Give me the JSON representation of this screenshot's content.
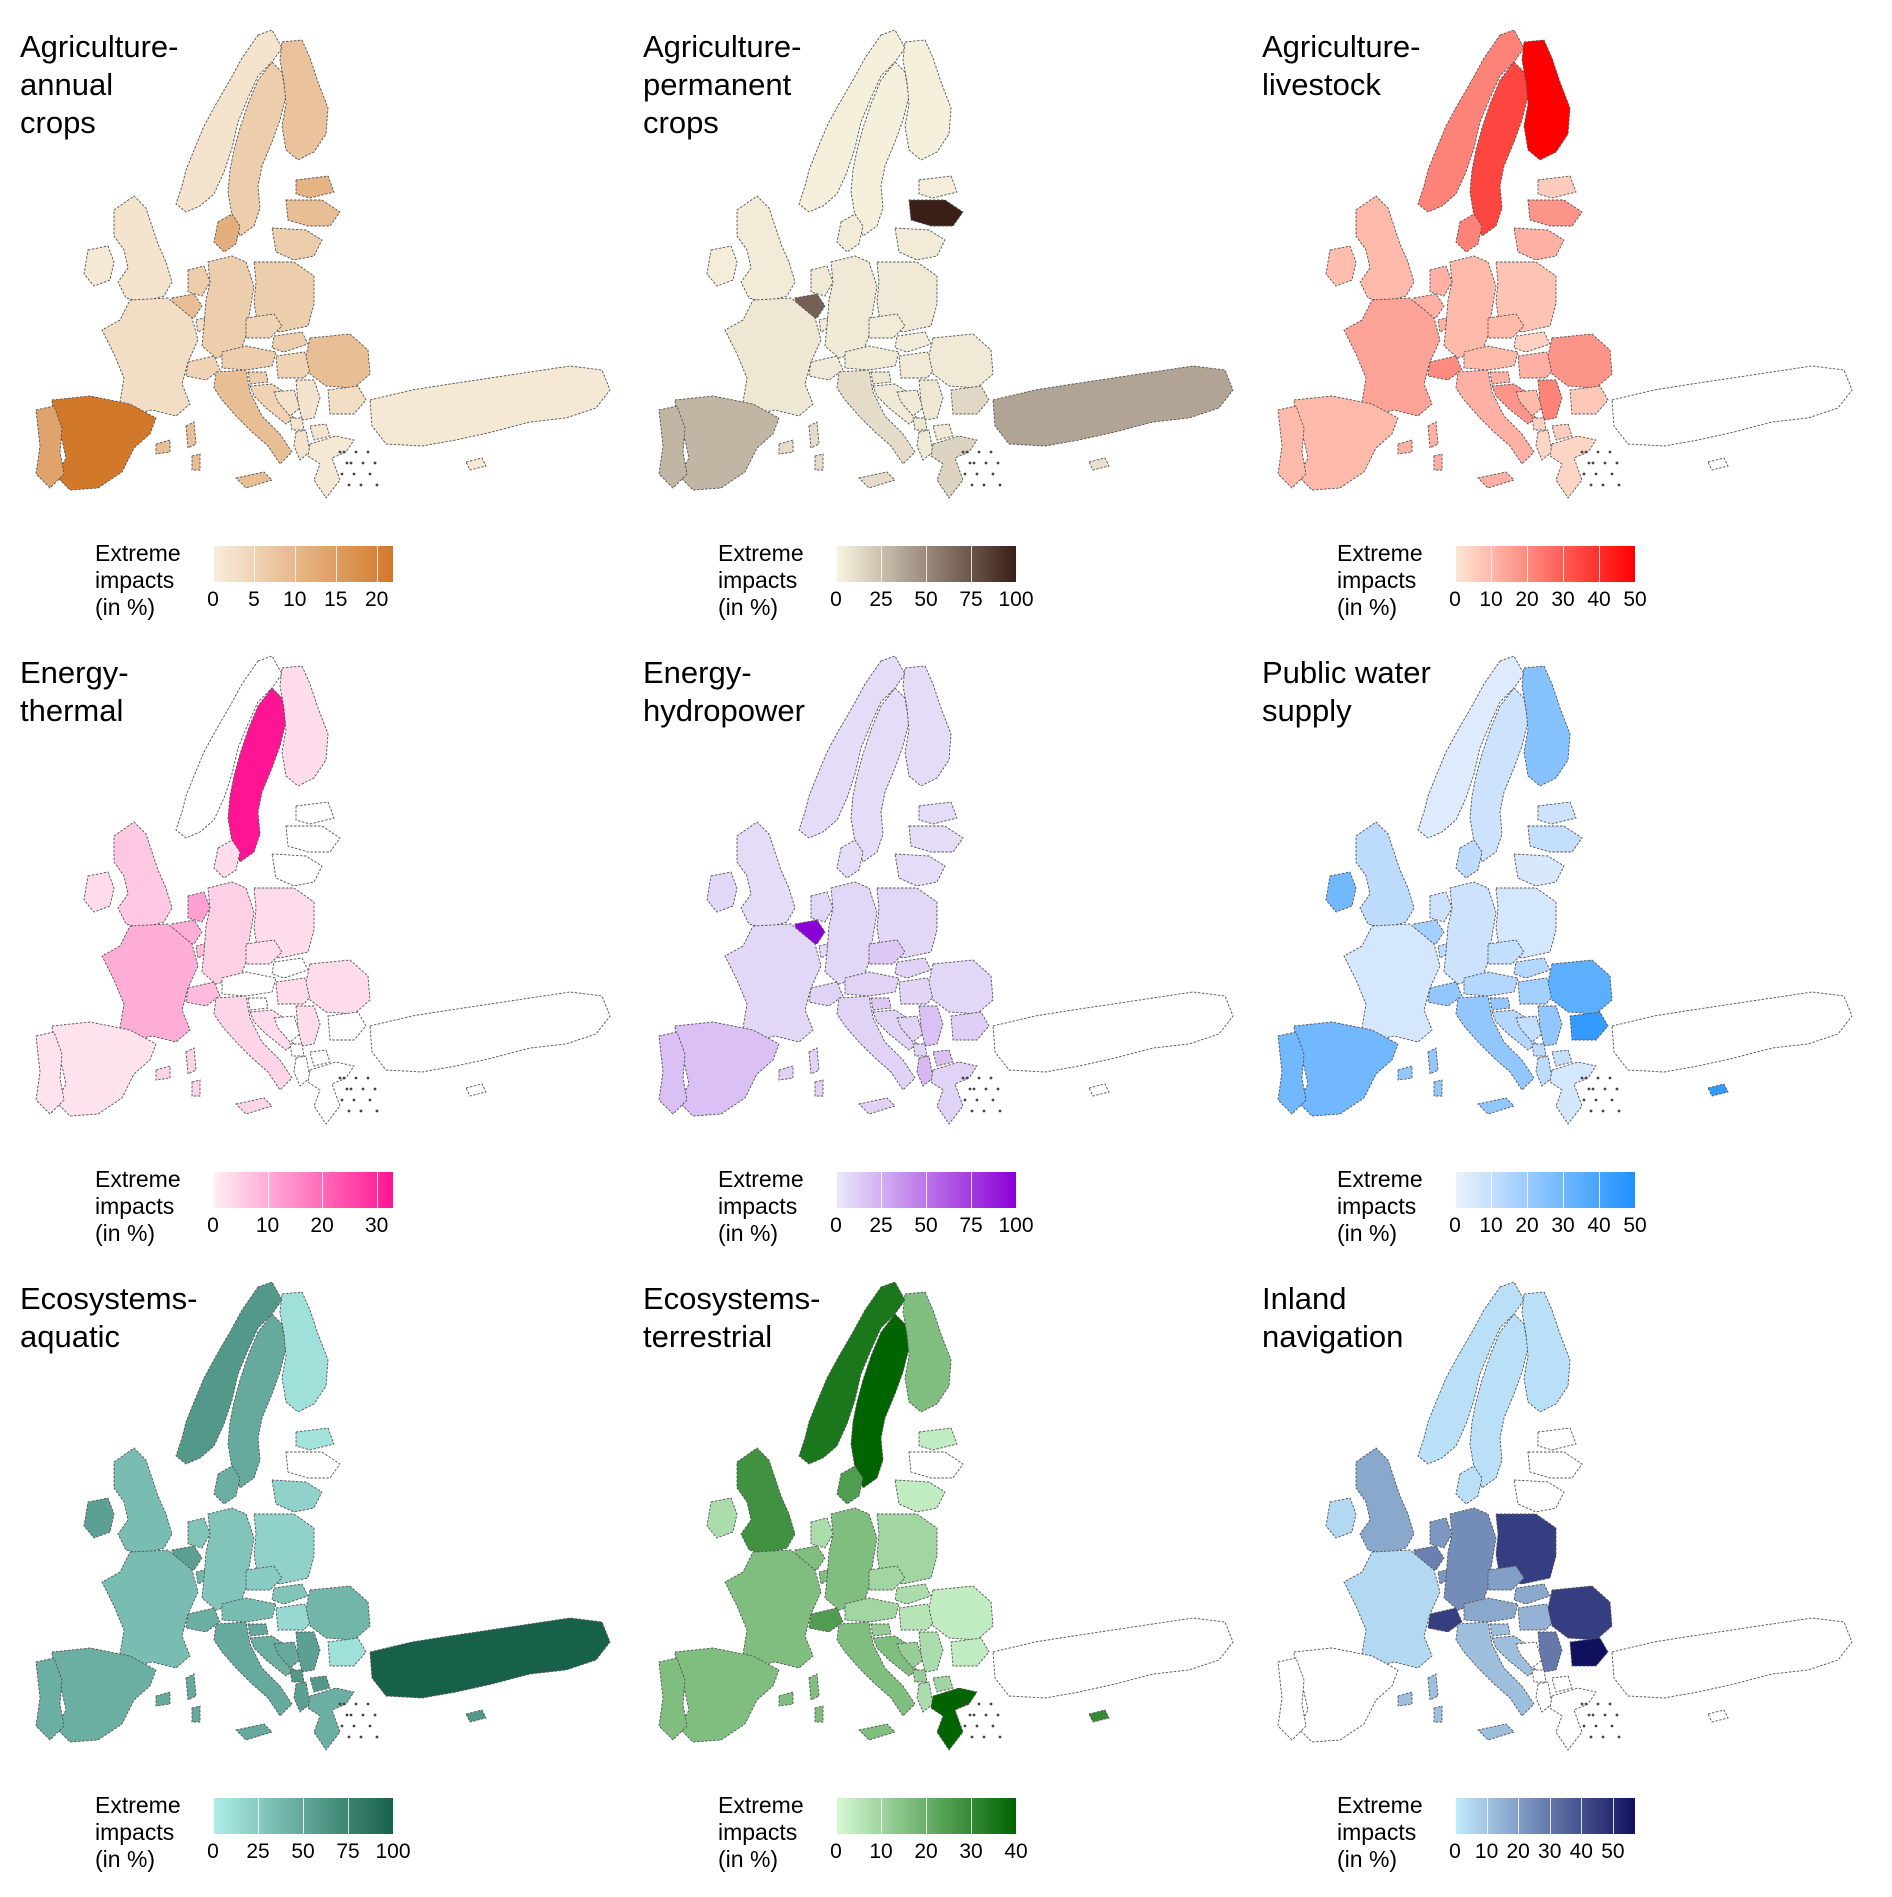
{
  "figure": {
    "legend_title": "Extreme\nimpacts\n(in %)"
  },
  "panels": [
    {
      "title": "Agriculture-\nannual\ncrops",
      "color_low": "#f7eedd",
      "color_high": "#d2782a",
      "scale_max": 22,
      "ticks": [
        "0",
        "5",
        "10",
        "15",
        "20"
      ],
      "tick_values": [
        0,
        5,
        10,
        15,
        20
      ],
      "values": {
        "PT": 14,
        "ES": 22,
        "FR": 3,
        "UK": 2,
        "IE": 1,
        "BE": 9,
        "NL": 6,
        "LU": 3,
        "DE": 6,
        "DK": 12,
        "NO": 2,
        "SE": 6,
        "FI": 8,
        "EE": 11,
        "LV": 9,
        "LT": 6,
        "PL": 6,
        "CZ": 5,
        "SK": 6,
        "AT": 6,
        "CH": 5,
        "IT": 9,
        "SI": 6,
        "HR": 5,
        "HU": 5,
        "RO": 9,
        "BG": 3,
        "RS": 2,
        "BA": 2,
        "ME": 2,
        "AL": 2,
        "MK": 2,
        "GR": 1,
        "TR": 1,
        "CY": 1
      }
    },
    {
      "title": "Agriculture-\npermanent\ncrops",
      "color_low": "#fbf6e1",
      "color_high": "#3a1f17",
      "scale_max": 100,
      "ticks": [
        "0",
        "25",
        "50",
        "75",
        "100"
      ],
      "tick_values": [
        0,
        25,
        50,
        75,
        100
      ],
      "values": {
        "PT": 30,
        "ES": 30,
        "FR": 7,
        "UK": 5,
        "IE": 4,
        "BE": 70,
        "NL": 6,
        "LU": 6,
        "DE": 6,
        "DK": 5,
        "NO": 3,
        "SE": 3,
        "FI": 3,
        "EE": 4,
        "LV": 100,
        "LT": 5,
        "PL": 6,
        "CZ": 5,
        "SK": 5,
        "AT": 6,
        "CH": 6,
        "IT": 12,
        "SI": 8,
        "HR": 6,
        "HU": 6,
        "RO": 6,
        "BG": 14,
        "RS": 7,
        "BA": 6,
        "ME": 8,
        "AL": 6,
        "MK": 6,
        "GR": 16,
        "TR": 38,
        "CY": 10
      }
    },
    {
      "title": "Agriculture-\nlivestock",
      "color_low": "#fde8d6",
      "color_high": "#fe0000",
      "scale_max": 50,
      "ticks": [
        "0",
        "10",
        "20",
        "30",
        "40",
        "50"
      ],
      "tick_values": [
        0,
        10,
        20,
        30,
        40,
        50
      ],
      "values": {
        "PT": 10,
        "ES": 10,
        "FR": 15,
        "UK": 10,
        "IE": 9,
        "BE": 12,
        "NL": 12,
        "LU": 12,
        "DE": 10,
        "DK": 22,
        "NO": 22,
        "SE": 35,
        "FI": 50,
        "EE": 6,
        "LV": 18,
        "LT": 12,
        "PL": 8,
        "CZ": 10,
        "SK": 5,
        "AT": 10,
        "CH": 20,
        "IT": 12,
        "SI": 12,
        "HR": 18,
        "HU": 12,
        "RO": 18,
        "BG": 7,
        "RS": 22,
        "BA": 10,
        "ME": 5,
        "AL": 4,
        "MK": 6,
        "GR": 4,
        "TR": null,
        "CY": null
      }
    },
    {
      "title": "Energy-\nthermal",
      "color_low": "#fef0f4",
      "color_high": "#ff1493",
      "scale_max": 33,
      "ticks": [
        "0",
        "10",
        "20",
        "30"
      ],
      "tick_values": [
        0,
        10,
        20,
        30
      ],
      "values": {
        "PT": 2,
        "ES": 2,
        "FR": 10,
        "UK": 6,
        "IE": 3,
        "BE": 10,
        "NL": 12,
        "LU": 8,
        "DE": 5,
        "DK": 3,
        "NO": null,
        "SE": 33,
        "FI": 3,
        "EE": null,
        "LV": null,
        "LT": null,
        "PL": 3,
        "CZ": 3,
        "SK": null,
        "AT": null,
        "CH": 8,
        "IT": 4,
        "SI": null,
        "HR": 3,
        "HU": 3,
        "RO": 3,
        "BG": null,
        "RS": 3,
        "BA": null,
        "ME": null,
        "AL": null,
        "MK": null,
        "GR": null,
        "TR": null,
        "CY": null
      }
    },
    {
      "title": "Energy-\nhydropower",
      "color_low": "#ebeafa",
      "color_high": "#8b00d6",
      "scale_max": 100,
      "ticks": [
        "0",
        "25",
        "50",
        "75",
        "100"
      ],
      "tick_values": [
        0,
        25,
        50,
        75,
        100
      ],
      "values": {
        "PT": 18,
        "ES": 18,
        "FR": 8,
        "UK": 6,
        "IE": 8,
        "BE": 100,
        "NL": 8,
        "LU": 8,
        "DE": 8,
        "DK": 6,
        "NO": 6,
        "SE": 6,
        "FI": 6,
        "EE": 6,
        "LV": 6,
        "LT": 6,
        "PL": 8,
        "CZ": 14,
        "SK": 10,
        "AT": 10,
        "CH": 10,
        "IT": 10,
        "SI": 14,
        "HR": 10,
        "HU": 9,
        "RO": 8,
        "BG": 12,
        "RS": 18,
        "BA": 10,
        "ME": 10,
        "AL": 22,
        "MK": 18,
        "GR": 10,
        "TR": null,
        "CY": null
      }
    },
    {
      "title": "Public water\nsupply",
      "color_low": "#eef3fd",
      "color_high": "#1e90ff",
      "scale_max": 50,
      "ticks": [
        "0",
        "10",
        "20",
        "30",
        "40",
        "50"
      ],
      "tick_values": [
        0,
        10,
        20,
        30,
        40,
        50
      ],
      "values": {
        "PT": 30,
        "ES": 30,
        "FR": 6,
        "UK": 12,
        "IE": 30,
        "BE": 18,
        "NL": 8,
        "LU": 12,
        "DE": 8,
        "DK": 12,
        "NO": 4,
        "SE": 8,
        "FI": 25,
        "EE": 8,
        "LV": 10,
        "LT": 5,
        "PL": 6,
        "CZ": 10,
        "SK": 14,
        "AT": 14,
        "CH": 22,
        "IT": 22,
        "SI": 22,
        "HR": 14,
        "HU": 18,
        "RO": 35,
        "BG": 45,
        "RS": 22,
        "BA": 10,
        "ME": 12,
        "AL": 12,
        "MK": 10,
        "GR": 6,
        "TR": null,
        "CY": 45
      }
    },
    {
      "title": "Ecosystems-\naquatic",
      "color_low": "#aeeeea",
      "color_high": "#17614a",
      "scale_max": 100,
      "ticks": [
        "0",
        "25",
        "50",
        "75",
        "100"
      ],
      "tick_values": [
        0,
        25,
        50,
        75,
        100
      ],
      "values": {
        "PT": 45,
        "ES": 45,
        "FR": 35,
        "UK": 35,
        "IE": 55,
        "BE": 55,
        "NL": 30,
        "LU": 40,
        "DE": 30,
        "DK": 45,
        "NO": 60,
        "SE": 48,
        "FI": 10,
        "EE": 8,
        "LV": null,
        "LT": 20,
        "PL": 20,
        "CZ": 25,
        "SK": 30,
        "AT": 35,
        "CH": 45,
        "IT": 48,
        "SI": 50,
        "HR": 45,
        "HU": 15,
        "RO": 40,
        "BG": 10,
        "RS": 55,
        "BA": 48,
        "ME": 60,
        "AL": 55,
        "MK": 60,
        "GR": 45,
        "TR": 100,
        "CY": 60
      }
    },
    {
      "title": "Ecosystems-\nterrestrial",
      "color_low": "#d6fad6",
      "color_high": "#006400",
      "scale_max": 40,
      "ticks": [
        "0",
        "10",
        "20",
        "30",
        "40"
      ],
      "tick_values": [
        0,
        10,
        20,
        30,
        40
      ],
      "values": {
        "PT": 16,
        "ES": 16,
        "FR": 16,
        "UK": 28,
        "IE": 8,
        "BE": 16,
        "NL": 8,
        "LU": 16,
        "DE": 16,
        "DK": 25,
        "NO": 35,
        "SE": 40,
        "FI": 16,
        "EE": 4,
        "LV": null,
        "LT": 4,
        "PL": 10,
        "CZ": 10,
        "SK": 8,
        "AT": 10,
        "CH": 25,
        "IT": 16,
        "SI": 12,
        "HR": 16,
        "HU": 6,
        "RO": 4,
        "BG": 4,
        "RS": 8,
        "BA": 12,
        "ME": 12,
        "AL": 8,
        "MK": 10,
        "GR": 40,
        "TR": null,
        "CY": 30
      }
    },
    {
      "title": "Inland\nnavigation",
      "color_low": "#c2ecff",
      "color_high": "#10105e",
      "scale_max": 57,
      "ticks": [
        "0",
        "10",
        "20",
        "30",
        "40",
        "50"
      ],
      "tick_values": [
        0,
        10,
        20,
        30,
        40,
        50
      ],
      "values": {
        "PT": null,
        "ES": null,
        "FR": 5,
        "UK": 18,
        "IE": 5,
        "BE": 28,
        "NL": 22,
        "LU": 22,
        "DE": 25,
        "DK": 3,
        "NO": 3,
        "SE": 3,
        "FI": 3,
        "EE": null,
        "LV": null,
        "LT": null,
        "PL": 45,
        "CZ": 20,
        "SK": 18,
        "AT": 18,
        "CH": 45,
        "IT": 12,
        "SI": 12,
        "HR": 12,
        "HU": 15,
        "RO": 45,
        "BG": 57,
        "RS": 30,
        "BA": null,
        "ME": null,
        "AL": null,
        "MK": null,
        "GR": null,
        "TR": null,
        "CY": null
      }
    }
  ]
}
